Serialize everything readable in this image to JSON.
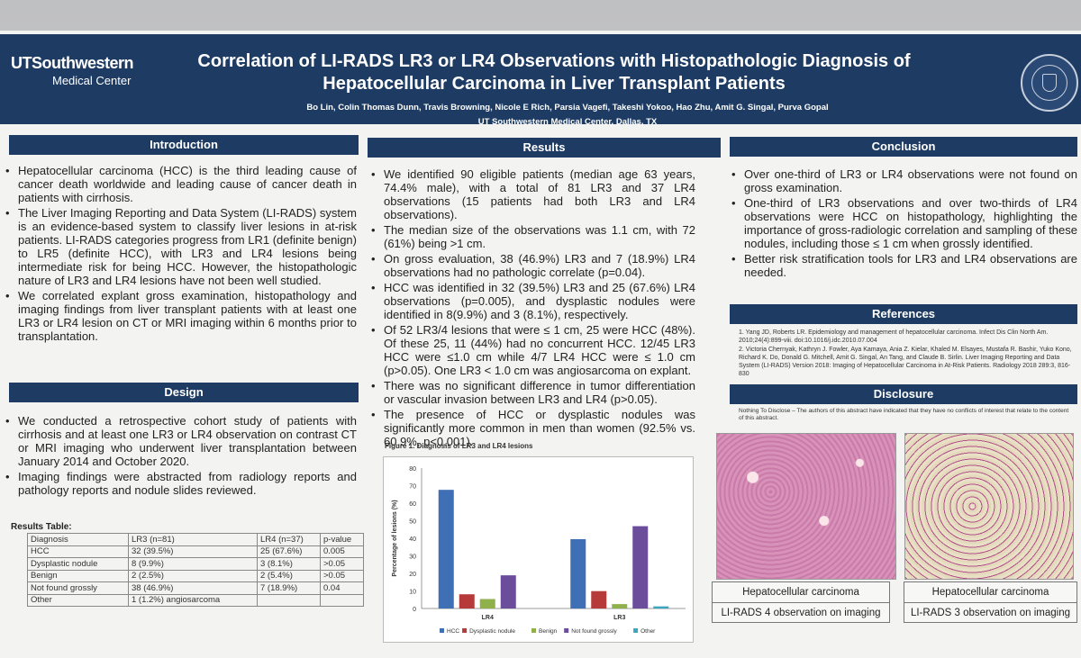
{
  "header": {
    "logo_line1": "UTSouthwestern",
    "logo_line2": "Medical Center",
    "title_line1": "Correlation of LI-RADS LR3 or LR4 Observations with Histopathologic Diagnosis of",
    "title_line2": "Hepatocellular Carcinoma in Liver Transplant Patients",
    "authors": "Bo Lin, Colin Thomas Dunn, Travis Browning, Nicole E Rich, Parsia Vagefi, Takeshi Yokoo, Hao Zhu, Amit G. Singal, Purva Gopal",
    "affiliation": "UT Southwestern Medical Center, Dallas, TX"
  },
  "introduction": {
    "heading": "Introduction",
    "bullets": [
      "Hepatocellular carcinoma (HCC) is the third leading cause of cancer death worldwide and leading cause of cancer death in patients with cirrhosis.",
      "The Liver Imaging Reporting and Data System (LI-RADS) system is an evidence-based system to classify liver lesions in at-risk patients. LI-RADS categories progress from LR1 (definite benign) to LR5 (definite HCC), with LR3 and LR4 lesions being intermediate risk for being HCC. However, the histopathologic nature of LR3 and LR4 lesions have not been well studied.",
      "We correlated explant gross examination, histopathology and imaging findings from liver transplant patients with at least one LR3 or LR4 lesion on CT or MRI imaging within 6 months prior to transplantation."
    ]
  },
  "design": {
    "heading": "Design",
    "bullets": [
      "We conducted a retrospective cohort study of patients with cirrhosis and at least one LR3 or LR4 observation on contrast CT or MRI imaging who underwent liver transplantation between January 2014 and October 2020.",
      "Imaging findings were abstracted from radiology reports and pathology reports and nodule slides reviewed."
    ]
  },
  "results_table": {
    "title": "Results Table:",
    "rows": [
      [
        "Diagnosis",
        "LR3 (n=81)",
        "LR4 (n=37)",
        "p-value"
      ],
      [
        "HCC",
        "32 (39.5%)",
        "25 (67.6%)",
        "0.005"
      ],
      [
        "Dysplastic nodule",
        "8 (9.9%)",
        "3 (8.1%)",
        ">0.05"
      ],
      [
        "Benign",
        "2 (2.5%)",
        "2 (5.4%)",
        ">0.05"
      ],
      [
        "Not found grossly",
        "38 (46.9%)",
        "7 (18.9%)",
        "0.04"
      ],
      [
        "Other",
        "1 (1.2%) angiosarcoma",
        "",
        ""
      ]
    ]
  },
  "results": {
    "heading": "Results",
    "bullets": [
      "We identified 90 eligible patients (median age 63 years, 74.4% male), with a total of 81 LR3 and 37 LR4 observations (15 patients had both LR3 and LR4 observations).",
      "The median size of the observations was 1.1 cm, with 72 (61%) being >1 cm.",
      "On gross evaluation, 38 (46.9%) LR3 and 7 (18.9%) LR4 observations had no pathologic correlate (p=0.04).",
      "HCC was identified in 32 (39.5%) LR3 and 25 (67.6%) LR4 observations (p=0.005), and dysplastic nodules were identified in 8(9.9%) and 3 (8.1%), respectively.",
      "Of 52 LR3/4 lesions that were ≤ 1 cm, 25 were HCC (48%). Of these 25, 11 (44%) had no concurrent HCC. 12/45 LR3 HCC were ≤1.0 cm while 4/7 LR4 HCC were ≤ 1.0 cm (p>0.05). One LR3 < 1.0 cm was angiosarcoma on explant.",
      "There was no significant difference in tumor differentiation or vascular invasion between LR3 and LR4 (p>0.05).",
      "The presence of HCC or dysplastic nodules was significantly more common in men than women (92.5% vs. 60.9%, p<0.001)."
    ],
    "figure_caption": "Figure 1. Diagnosis of LR3 and LR4 lesions"
  },
  "chart_data": {
    "type": "bar",
    "title": "Figure 1. Diagnosis of LR3 and LR4 lesions",
    "categories": [
      "LR4",
      "LR3"
    ],
    "series": [
      {
        "name": "HCC",
        "values": [
          67.6,
          39.5
        ],
        "color": "#3f6fb5"
      },
      {
        "name": "Dysplastic nodule",
        "values": [
          8.1,
          9.9
        ],
        "color": "#b63a3a"
      },
      {
        "name": "Benign",
        "values": [
          5.4,
          2.5
        ],
        "color": "#8fb04a"
      },
      {
        "name": "Not found grossly",
        "values": [
          18.9,
          46.9
        ],
        "color": "#6b4d9b"
      },
      {
        "name": "Other",
        "values": [
          0,
          1.2
        ],
        "color": "#3aa6c2"
      }
    ],
    "ylabel": "Percentage of lesions (%)",
    "xlabel": "",
    "ylim": [
      0,
      80
    ],
    "yticks": [
      0,
      10,
      20,
      30,
      40,
      50,
      60,
      70,
      80
    ],
    "legend": "bottom",
    "grid": false
  },
  "conclusion": {
    "heading": "Conclusion",
    "bullets": [
      "Over one-third of LR3 or LR4 observations were not found on gross examination.",
      "One-third of LR3 observations and over two-thirds of LR4 observations were HCC on histopathology, highlighting the importance of gross-radiologic correlation and sampling of these nodules, including those ≤ 1 cm when grossly identified.",
      "Better risk stratification tools for LR3 and LR4 observations are needed."
    ]
  },
  "references": {
    "heading": "References",
    "items": [
      "1. Yang JD, Roberts LR. Epidemiology and management of hepatocellular carcinoma. Infect Dis Clin North Am. 2010;24(4):899-viii. doi:10.1016/j.idc.2010.07.004",
      "2. Victoria Chernyak, Kathryn J. Fowler, Aya Kamaya, Ania Z. Kielar, Khaled M. Elsayes, Mustafa R. Bashir, Yuko Kono, Richard K. Do, Donald G. Mitchell, Amit G. Singal, An Tang, and Claude B. Sirlin. Liver Imaging Reporting and Data System (LI-RADS) Version 2018: Imaging of Hepatocellular Carcinoma in At-Risk Patients. Radiology 2018 289:3, 816-830"
    ]
  },
  "disclosure": {
    "heading": "Disclosure",
    "text": "Nothing To Disclose – The authors of this abstract have indicated that they have no conflicts of interest that relate to the content of this abstract."
  },
  "images": [
    {
      "caption1": "Hepatocellular carcinoma",
      "caption2": "LI-RADS 4 observation on imaging"
    },
    {
      "caption1": "Hepatocellular carcinoma",
      "caption2": "LI-RADS 3 observation on imaging"
    }
  ]
}
